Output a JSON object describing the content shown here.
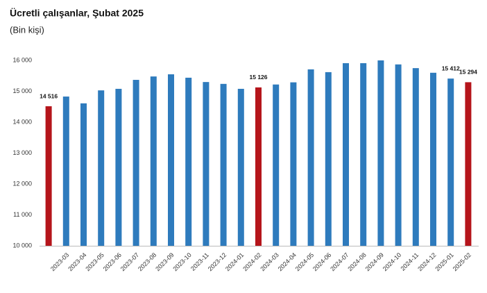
{
  "chart_data": {
    "type": "bar",
    "title": "Ücretli çalışanlar, Şubat 2025",
    "subtitle": "(Bin kişi)",
    "categories": [
      null,
      "2023-03",
      "2023-04",
      "2023-05",
      "2023-06",
      "2023-07",
      "2023-08",
      "2023-09",
      "2023-10",
      "2023-11",
      "2023-12",
      "2024-01",
      "2024-02",
      "2024-03",
      "2024-04",
      "2024-05",
      "2024-06",
      "2024-07",
      "2024-08",
      "2024-09",
      "2024-10",
      "2024-11",
      "2024-12",
      "2025-01",
      "2025-02"
    ],
    "values": [
      14516,
      14830,
      14610,
      15030,
      15080,
      15370,
      15480,
      15550,
      15440,
      15300,
      15240,
      15080,
      15126,
      15220,
      15290,
      15710,
      15620,
      15910,
      15910,
      16000,
      15870,
      15750,
      15600,
      15412,
      15294
    ],
    "value_labels": [
      "14 516",
      null,
      null,
      null,
      null,
      null,
      null,
      null,
      null,
      null,
      null,
      null,
      "15 126",
      null,
      null,
      null,
      null,
      null,
      null,
      null,
      null,
      null,
      null,
      "15 412",
      "15 294"
    ],
    "colors": [
      "#b5151b",
      "#2e7bbd",
      "#2e7bbd",
      "#2e7bbd",
      "#2e7bbd",
      "#2e7bbd",
      "#2e7bbd",
      "#2e7bbd",
      "#2e7bbd",
      "#2e7bbd",
      "#2e7bbd",
      "#2e7bbd",
      "#b5151b",
      "#2e7bbd",
      "#2e7bbd",
      "#2e7bbd",
      "#2e7bbd",
      "#2e7bbd",
      "#2e7bbd",
      "#2e7bbd",
      "#2e7bbd",
      "#2e7bbd",
      "#2e7bbd",
      "#2e7bbd",
      "#b5151b"
    ],
    "ylim": [
      10000,
      16000
    ],
    "yticks": [
      {
        "value": 10000,
        "label": "10 000"
      },
      {
        "value": 11000,
        "label": "11 000"
      },
      {
        "value": 12000,
        "label": "12 000"
      },
      {
        "value": 13000,
        "label": "13 000"
      },
      {
        "value": 14000,
        "label": "14 000"
      },
      {
        "value": 15000,
        "label": "15 000"
      },
      {
        "value": 16000,
        "label": "16 000"
      }
    ],
    "grid": false
  }
}
